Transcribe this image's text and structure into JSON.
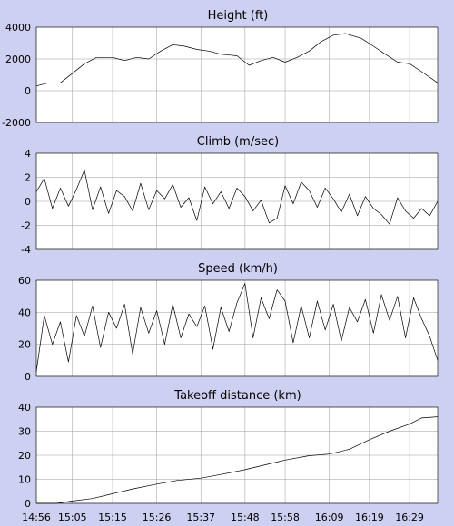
{
  "chart_data": [
    {
      "type": "line",
      "title": "Height (ft)",
      "ylim": [
        -2000,
        4000
      ],
      "yticks": [
        "4000",
        "2000",
        "0",
        "-2000"
      ],
      "ytick_values": [
        4000,
        2000,
        0,
        -2000
      ],
      "x": [
        "14:56",
        "14:59",
        "15:02",
        "15:05",
        "15:08",
        "15:11",
        "15:15",
        "15:18",
        "15:21",
        "15:24",
        "15:27",
        "15:30",
        "15:33",
        "15:36",
        "15:39",
        "15:42",
        "15:46",
        "15:49",
        "15:52",
        "15:55",
        "15:58",
        "16:01",
        "16:04",
        "16:07",
        "16:10",
        "16:13",
        "16:17",
        "16:20",
        "16:23",
        "16:26",
        "16:29",
        "16:32",
        "16:36"
      ],
      "series": [
        {
          "values": [
            300,
            500,
            500,
            1100,
            1700,
            2100,
            2100,
            1900,
            2100,
            2000,
            2500,
            2900,
            2800,
            2600,
            2500,
            2300,
            2200,
            1600,
            1900,
            2100,
            1800,
            2100,
            2500,
            3100,
            3500,
            3600,
            3300,
            2800,
            2300,
            1800,
            1700,
            1200,
            500
          ]
        }
      ]
    },
    {
      "type": "line",
      "title": "Climb (m/sec)",
      "ylim": [
        -4,
        4
      ],
      "yticks": [
        "4",
        "2",
        "0",
        "-2",
        "-4"
      ],
      "ytick_values": [
        4,
        2,
        0,
        -2,
        -4
      ],
      "x": [
        "14:56",
        "14:58",
        "15:00",
        "15:02",
        "15:04",
        "15:06",
        "15:08",
        "15:10",
        "15:12",
        "15:14",
        "15:16",
        "15:18",
        "15:20",
        "15:22",
        "15:24",
        "15:26",
        "15:28",
        "15:30",
        "15:32",
        "15:34",
        "15:36",
        "15:38",
        "15:40",
        "15:42",
        "15:44",
        "15:46",
        "15:48",
        "15:50",
        "15:52",
        "15:54",
        "15:56",
        "15:58",
        "16:00",
        "16:02",
        "16:04",
        "16:06",
        "16:08",
        "16:10",
        "16:12",
        "16:14",
        "16:16",
        "16:18",
        "16:20",
        "16:22",
        "16:24",
        "16:26",
        "16:28",
        "16:30",
        "16:32",
        "16:34",
        "16:36"
      ],
      "series": [
        {
          "values": [
            0.8,
            1.9,
            -0.6,
            1.1,
            -0.4,
            1.0,
            2.6,
            -0.7,
            1.2,
            -1.0,
            0.9,
            0.4,
            -0.8,
            1.5,
            -0.7,
            0.9,
            0.2,
            1.4,
            -0.5,
            0.3,
            -1.6,
            1.2,
            -0.2,
            0.8,
            -0.6,
            1.1,
            0.4,
            -0.8,
            0.1,
            -1.8,
            -1.4,
            1.3,
            -0.2,
            1.6,
            0.9,
            -0.5,
            1.1,
            0.2,
            -0.9,
            0.6,
            -1.2,
            0.4,
            -0.6,
            -1.1,
            -1.9,
            0.3,
            -0.8,
            -1.4,
            -0.6,
            -1.2,
            0.0
          ]
        }
      ]
    },
    {
      "type": "line",
      "title": "Speed (km/h)",
      "ylim": [
        0,
        60
      ],
      "yticks": [
        "60",
        "40",
        "20",
        "0"
      ],
      "ytick_values": [
        60,
        40,
        20,
        0
      ],
      "x": [
        "14:56",
        "14:58",
        "15:00",
        "15:02",
        "15:04",
        "15:06",
        "15:08",
        "15:10",
        "15:12",
        "15:14",
        "15:16",
        "15:18",
        "15:20",
        "15:22",
        "15:24",
        "15:26",
        "15:28",
        "15:30",
        "15:32",
        "15:34",
        "15:36",
        "15:38",
        "15:40",
        "15:42",
        "15:44",
        "15:46",
        "15:48",
        "15:50",
        "15:52",
        "15:54",
        "15:56",
        "15:58",
        "16:00",
        "16:02",
        "16:04",
        "16:06",
        "16:08",
        "16:10",
        "16:12",
        "16:14",
        "16:16",
        "16:18",
        "16:20",
        "16:22",
        "16:24",
        "16:26",
        "16:28",
        "16:30",
        "16:32",
        "16:34",
        "16:36"
      ],
      "series": [
        {
          "values": [
            3,
            38,
            20,
            34,
            9,
            38,
            25,
            44,
            18,
            40,
            30,
            45,
            14,
            43,
            27,
            41,
            20,
            45,
            24,
            39,
            31,
            44,
            17,
            43,
            28,
            46,
            58,
            24,
            49,
            36,
            54,
            47,
            21,
            44,
            24,
            47,
            29,
            45,
            22,
            43,
            34,
            48,
            27,
            51,
            35,
            50,
            24,
            49,
            36,
            25,
            10
          ]
        }
      ]
    },
    {
      "type": "line",
      "title": "Takeoff distance (km)",
      "ylim": [
        0,
        40
      ],
      "yticks": [
        "40",
        "30",
        "20",
        "10",
        "0"
      ],
      "ytick_values": [
        40,
        30,
        20,
        10,
        0
      ],
      "xticks": [
        "14:56",
        "15:05",
        "15:15",
        "15:26",
        "15:37",
        "15:48",
        "15:58",
        "16:09",
        "16:19",
        "16:29"
      ],
      "x": [
        "14:56",
        "15:01",
        "15:05",
        "15:10",
        "15:15",
        "15:20",
        "15:26",
        "15:31",
        "15:37",
        "15:42",
        "15:48",
        "15:53",
        "15:58",
        "16:04",
        "16:09",
        "16:14",
        "16:19",
        "16:24",
        "16:29",
        "16:32",
        "16:36"
      ],
      "series": [
        {
          "values": [
            0,
            0,
            1,
            2,
            4,
            6,
            8,
            9.5,
            10.5,
            12,
            14,
            16,
            18,
            19.8,
            20.5,
            22.5,
            26.5,
            30,
            33,
            35.5,
            36
          ]
        }
      ]
    }
  ]
}
